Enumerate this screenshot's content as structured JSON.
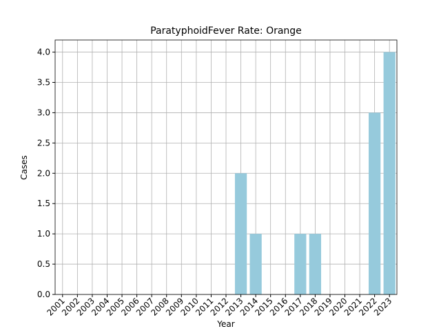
{
  "chart_data": {
    "type": "bar",
    "title": "ParatyphoidFever Rate: Orange",
    "xlabel": "Year",
    "ylabel": "Cases",
    "categories": [
      "2001",
      "2002",
      "2003",
      "2004",
      "2005",
      "2006",
      "2007",
      "2008",
      "2009",
      "2010",
      "2011",
      "2012",
      "2013",
      "2014",
      "2015",
      "2016",
      "2017",
      "2018",
      "2019",
      "2020",
      "2021",
      "2022",
      "2023"
    ],
    "values": [
      0,
      0,
      0,
      0,
      0,
      0,
      0,
      0,
      0,
      0,
      0,
      0,
      2,
      1,
      0,
      0,
      1,
      1,
      0,
      0,
      0,
      3,
      4
    ],
    "color": "#96cadc",
    "ylim": [
      0,
      4.2
    ],
    "yticks": [
      {
        "value": 0,
        "label": "0.0"
      },
      {
        "value": 0.5,
        "label": "0.5"
      },
      {
        "value": 1,
        "label": "1.0"
      },
      {
        "value": 1.5,
        "label": "1.5"
      },
      {
        "value": 2,
        "label": "2.0"
      },
      {
        "value": 2.5,
        "label": "2.5"
      },
      {
        "value": 3,
        "label": "3.0"
      },
      {
        "value": 3.5,
        "label": "3.5"
      },
      {
        "value": 4,
        "label": "4.0"
      }
    ],
    "grid": true
  }
}
